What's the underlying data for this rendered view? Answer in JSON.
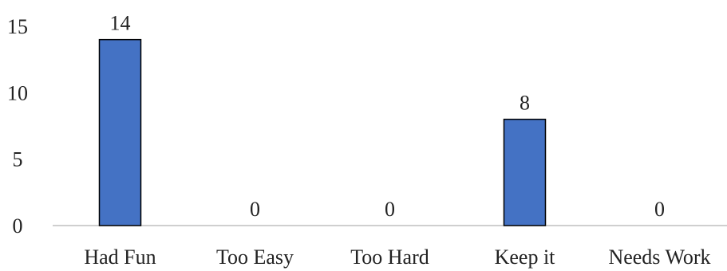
{
  "chart_data": {
    "type": "bar",
    "categories": [
      "Had Fun",
      "Too Easy",
      "Too Hard",
      "Keep it",
      "Needs Work"
    ],
    "values": [
      14,
      0,
      0,
      8,
      0
    ],
    "data_labels": [
      "14",
      "0",
      "0",
      "8",
      "0"
    ],
    "title": "",
    "xlabel": "",
    "ylabel": "",
    "ylim": [
      0,
      15
    ],
    "yticks": [
      0,
      5,
      10,
      15
    ],
    "ytick_labels": [
      "0",
      "5",
      "10",
      "15"
    ],
    "grid": false,
    "legend": "none",
    "bar_color": "#4472C4",
    "bar_edge_color": "#000000",
    "axis_color": "#BFBFBF"
  }
}
